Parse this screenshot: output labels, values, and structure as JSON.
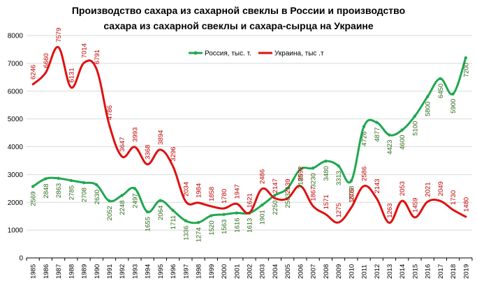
{
  "chart_data": {
    "type": "line",
    "title_line1": "Производство сахара из сахарной свеклы в России и производство",
    "title_line2": "сахара из сахарной свеклы и сахара-сырца на Украине",
    "categories": [
      "1985",
      "1986",
      "1987",
      "1988",
      "1989",
      "1990",
      "1991",
      "1992",
      "1993",
      "1994",
      "1995",
      "1996",
      "1997",
      "1998",
      "1999",
      "2000",
      "2001",
      "2002",
      "2003",
      "2004",
      "2005",
      "2006",
      "2007",
      "2008",
      "2009",
      "2010",
      "2011",
      "2012",
      "2013",
      "2014",
      "2015",
      "2016",
      "2017",
      "2018",
      "2019"
    ],
    "ylim": [
      0,
      8000
    ],
    "yticks": [
      "0",
      "1000",
      "2000",
      "3000",
      "4000",
      "5000",
      "6000",
      "7000",
      "8000"
    ],
    "grid": true,
    "legend_position": "top-right",
    "series": [
      {
        "name": "Россия, тыс. т.",
        "color": "#1fa84f",
        "label_color": "#2e6b1a",
        "values": [
          2569,
          2848,
          2863,
          2785,
          2708,
          2630,
          2052,
          2248,
          2497,
          1655,
          2064,
          1711,
          1336,
          1274,
          1520,
          1563,
          1616,
          1613,
          1901,
          2250,
          2503,
          3188,
          3230,
          3480,
          3313,
          2768,
          4726,
          4877,
          4423,
          4600,
          5100,
          5800,
          6450,
          5900,
          7200
        ],
        "data_labels": [
          "2569",
          "2848",
          "2863",
          "2785",
          "2708",
          "2630",
          "2052",
          "2248",
          "2497",
          "1655",
          "2064",
          "1711",
          "1336",
          "1274",
          "1520",
          "1563",
          "1616",
          "1613",
          "1901",
          "2250",
          "2503",
          "3188",
          "3230",
          "3480",
          "3313",
          "2768",
          "4726",
          "4877",
          "4423",
          "4600",
          "5100",
          "5800",
          "6450",
          "5900",
          "7200"
        ]
      },
      {
        "name": "Украина, тыс .т",
        "color": "#e01010",
        "label_color": "#c00000",
        "values": [
          6246,
          6660,
          7579,
          6131,
          7014,
          6791,
          4786,
          3647,
          3993,
          3368,
          3894,
          3296,
          2034,
          1984,
          1858,
          1780,
          1947,
          1621,
          2486,
          2147,
          2139,
          2592,
          1867,
          1571,
          1275,
          1805,
          2586,
          2143,
          1263,
          2053,
          1459,
          2021,
          2049,
          1730,
          1480
        ],
        "data_labels": [
          "6246",
          "6660",
          "7579",
          "6131",
          "7014",
          "6791",
          "4786",
          "3647",
          "3993",
          "3368",
          "3894",
          "3296",
          "2034",
          "1984",
          "1858",
          "1780",
          "1947",
          "1621",
          "2486",
          "2147",
          "2139",
          "2592",
          "1867",
          "1571",
          "1275",
          "1805",
          "2586",
          "2143",
          "1263",
          "2053",
          "1459",
          "2021",
          "2049",
          "1730",
          "1480"
        ]
      }
    ]
  }
}
